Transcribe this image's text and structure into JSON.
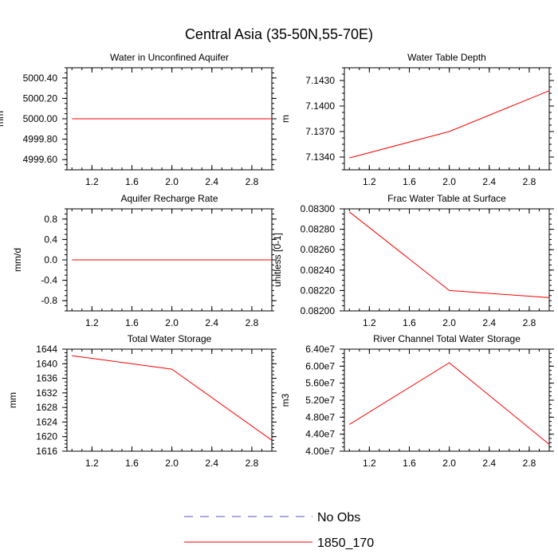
{
  "title": "Central Asia (35-50N,55-70E)",
  "chart_data": [
    {
      "type": "line",
      "title": "Water in Unconfined Aquifer",
      "ylabel": "mm",
      "x": [
        1.0,
        2.0,
        3.0
      ],
      "xlim": [
        0.95,
        3.0
      ],
      "ylim": [
        4999.5,
        5000.5
      ],
      "xticks": [
        1.2,
        1.6,
        2.0,
        2.4,
        2.8
      ],
      "xtick_labels": [
        "1.2",
        "1.6",
        "2.0",
        "2.4",
        "2.8"
      ],
      "yticks": [
        5000.4,
        5000.2,
        5000.0,
        4999.8,
        4999.6
      ],
      "ytick_labels": [
        "5000.40",
        "5000.20",
        "5000.00",
        "4999.80",
        "4999.60"
      ],
      "grid": false,
      "series": [
        {
          "name": "1850_170",
          "values": [
            5000.0,
            5000.0,
            5000.0
          ],
          "color": "#ff0000"
        }
      ]
    },
    {
      "type": "line",
      "title": "Water Table Depth",
      "ylabel": "m",
      "x": [
        1.0,
        2.0,
        3.0
      ],
      "xlim": [
        0.95,
        3.0
      ],
      "ylim": [
        7.1325,
        7.1445
      ],
      "xticks": [
        1.2,
        1.6,
        2.0,
        2.4,
        2.8
      ],
      "xtick_labels": [
        "1.2",
        "1.6",
        "2.0",
        "2.4",
        "2.8"
      ],
      "yticks": [
        7.143,
        7.14,
        7.137,
        7.134
      ],
      "ytick_labels": [
        "7.1430",
        "7.1400",
        "7.1370",
        "7.1340"
      ],
      "grid": false,
      "series": [
        {
          "name": "1850_170",
          "values": [
            7.1339,
            7.137,
            7.1418
          ],
          "color": "#ff0000"
        }
      ]
    },
    {
      "type": "line",
      "title": "Aquifer Recharge Rate",
      "ylabel": "mm/d",
      "x": [
        1.0,
        2.0,
        3.0
      ],
      "xlim": [
        0.95,
        3.0
      ],
      "ylim": [
        -1.0,
        1.0
      ],
      "xticks": [
        1.2,
        1.6,
        2.0,
        2.4,
        2.8
      ],
      "xtick_labels": [
        "1.2",
        "1.6",
        "2.0",
        "2.4",
        "2.8"
      ],
      "yticks": [
        0.8,
        0.4,
        0.0,
        -0.4,
        -0.8
      ],
      "ytick_labels": [
        "0.8",
        "0.4",
        "0.0",
        "-0.4",
        "-0.8"
      ],
      "grid": false,
      "series": [
        {
          "name": "1850_170",
          "values": [
            0.0,
            0.0,
            0.0
          ],
          "color": "#ff0000"
        }
      ]
    },
    {
      "type": "line",
      "title": "Frac Water Table at Surface",
      "ylabel": "unitless [0-1]",
      "x": [
        1.0,
        2.0,
        3.0
      ],
      "xlim": [
        0.95,
        3.0
      ],
      "ylim": [
        0.082,
        0.083
      ],
      "xticks": [
        1.2,
        1.6,
        2.0,
        2.4,
        2.8
      ],
      "xtick_labels": [
        "1.2",
        "1.6",
        "2.0",
        "2.4",
        "2.8"
      ],
      "yticks": [
        0.083,
        0.0828,
        0.0826,
        0.0824,
        0.0822,
        0.082
      ],
      "ytick_labels": [
        "0.08300",
        "0.08280",
        "0.08260",
        "0.08240",
        "0.08220",
        "0.08200"
      ],
      "grid": false,
      "series": [
        {
          "name": "1850_170",
          "values": [
            0.08297,
            0.0822,
            0.08213
          ],
          "color": "#ff0000"
        }
      ]
    },
    {
      "type": "line",
      "title": "Total Water Storage",
      "ylabel": "mm",
      "x": [
        1.0,
        2.0,
        3.0
      ],
      "xlim": [
        0.95,
        3.0
      ],
      "ylim": [
        1616,
        1644
      ],
      "xticks": [
        1.2,
        1.6,
        2.0,
        2.4,
        2.8
      ],
      "xtick_labels": [
        "1.2",
        "1.6",
        "2.0",
        "2.4",
        "2.8"
      ],
      "yticks": [
        1644,
        1640,
        1636,
        1632,
        1628,
        1624,
        1620,
        1616
      ],
      "ytick_labels": [
        "1644",
        "1640",
        "1636",
        "1632",
        "1628",
        "1624",
        "1620",
        "1616"
      ],
      "grid": false,
      "series": [
        {
          "name": "1850_170",
          "values": [
            1642.2,
            1638.5,
            1619.0
          ],
          "color": "#ff0000"
        }
      ]
    },
    {
      "type": "line",
      "title": "River Channel Total Water Storage",
      "ylabel": "m3",
      "x": [
        1.0,
        2.0,
        3.0
      ],
      "xlim": [
        0.95,
        3.0
      ],
      "ylim": [
        40000000,
        64000000
      ],
      "xticks": [
        1.2,
        1.6,
        2.0,
        2.4,
        2.8
      ],
      "xtick_labels": [
        "1.2",
        "1.6",
        "2.0",
        "2.4",
        "2.8"
      ],
      "yticks": [
        64000000,
        60000000,
        56000000,
        52000000,
        48000000,
        44000000,
        40000000
      ],
      "ytick_labels": [
        "6.40e7",
        "6.00e7",
        "5.60e7",
        "5.20e7",
        "4.80e7",
        "4.40e7",
        "4.00e7"
      ],
      "grid": false,
      "series": [
        {
          "name": "1850_170",
          "values": [
            46300000,
            60800000,
            41600000
          ],
          "color": "#ff0000"
        }
      ]
    }
  ],
  "legend": {
    "placement": "bottom-center",
    "items": [
      {
        "label": "No Obs",
        "color": "#5050c8",
        "style": "dashed"
      },
      {
        "label": "1850_170",
        "color": "#ff0000",
        "style": "solid"
      }
    ]
  }
}
